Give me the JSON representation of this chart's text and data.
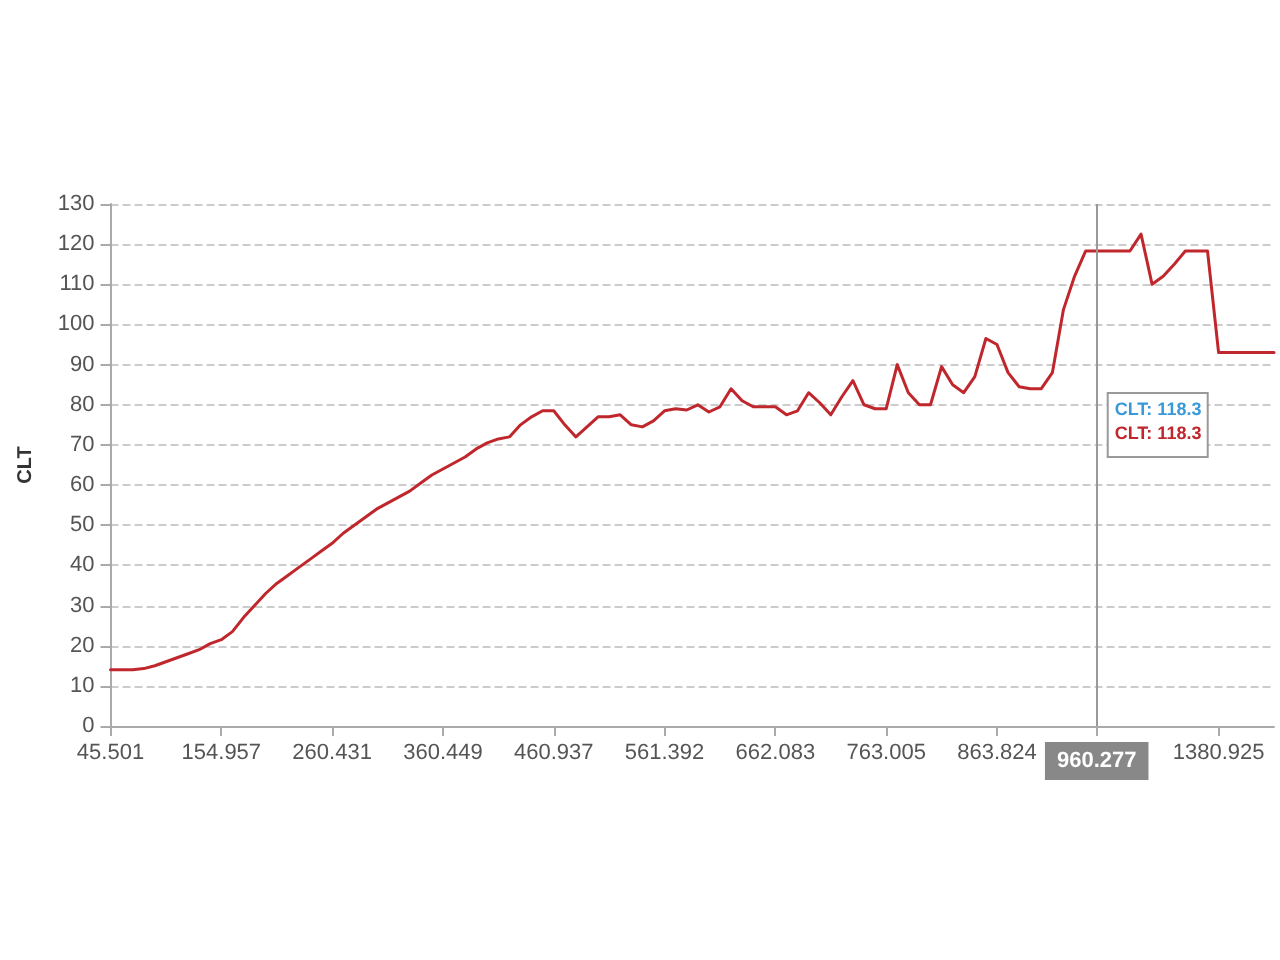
{
  "chart_data": {
    "type": "line",
    "ylabel": "CLT",
    "categories": [
      "45.501",
      null,
      null,
      null,
      null,
      null,
      null,
      null,
      null,
      null,
      "154.957",
      null,
      null,
      null,
      null,
      null,
      null,
      null,
      null,
      null,
      "260.431",
      null,
      null,
      null,
      null,
      null,
      null,
      null,
      null,
      null,
      "360.449",
      null,
      null,
      null,
      null,
      null,
      null,
      null,
      null,
      null,
      "460.937",
      null,
      null,
      null,
      null,
      null,
      null,
      null,
      null,
      null,
      "561.392",
      null,
      null,
      null,
      null,
      null,
      null,
      null,
      null,
      null,
      "662.083",
      null,
      null,
      null,
      null,
      null,
      null,
      null,
      null,
      null,
      "763.005",
      null,
      null,
      null,
      null,
      null,
      null,
      null,
      null,
      null,
      "863.824",
      null,
      null,
      null,
      null,
      null,
      null,
      null,
      null,
      "960.277",
      null,
      null,
      null,
      null,
      null,
      null,
      null,
      null,
      null,
      null,
      "1380.925",
      null,
      null,
      null,
      null,
      null
    ],
    "series": [
      {
        "color": "#c0272d",
        "values": [
          14,
          14,
          14,
          14.3,
          15,
          16,
          17,
          18,
          19,
          20.5,
          21.5,
          23.5,
          27,
          30,
          33,
          35.5,
          37.5,
          39.5,
          41.5,
          43.5,
          45.5,
          48,
          50,
          52,
          54,
          55.5,
          57,
          58.5,
          60.5,
          62.5,
          64,
          65.5,
          67,
          69,
          70.5,
          71.5,
          72,
          75,
          77,
          78.5,
          78.5,
          75,
          72,
          74.5,
          77,
          77,
          77.5,
          75,
          74.5,
          76,
          78.5,
          79,
          78.7,
          80,
          78.2,
          79.5,
          84,
          81,
          79.5,
          79.5,
          79.5,
          77.5,
          78.5,
          83,
          80.5,
          77.5,
          82,
          86,
          80,
          79,
          79,
          90,
          83,
          80,
          80,
          89.5,
          85,
          83,
          87,
          96.5,
          95,
          88,
          84.5,
          84,
          84,
          88,
          103.7,
          112,
          118.3,
          118.3,
          118.3,
          118.3,
          118.3,
          122.5,
          110,
          112,
          115,
          118.3,
          118.3,
          118.3,
          93,
          93,
          93,
          93,
          93,
          93
        ]
      }
    ],
    "ylim": [
      0,
      130
    ],
    "yticks": [
      0,
      10,
      20,
      30,
      40,
      50,
      60,
      70,
      80,
      90,
      100,
      110,
      120,
      130
    ],
    "grid": "y",
    "marker": "none",
    "line_style": "solid",
    "ref_lines": [
      {
        "axis": "x",
        "value": "960.277",
        "color": "#999999"
      }
    ],
    "annotations": [
      "CLT: 118.3",
      "CLT: 118.3"
    ]
  }
}
